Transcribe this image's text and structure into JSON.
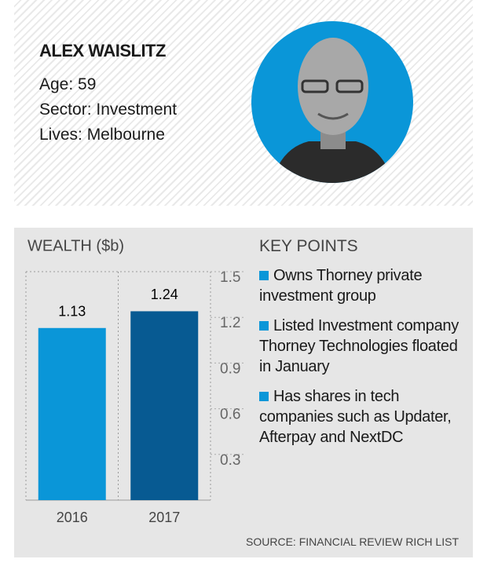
{
  "person": {
    "name": "ALEX WAISLITZ",
    "age": "Age: 59",
    "sector": "Sector: Investment",
    "lives": "Lives: Melbourne"
  },
  "chart_data": {
    "type": "bar",
    "title": "WEALTH ($b)",
    "categories": [
      "2016",
      "2017"
    ],
    "values": [
      1.13,
      1.24
    ],
    "colors": [
      "#0a96d8",
      "#075a92"
    ],
    "ylim": [
      0,
      1.5
    ],
    "yticks": [
      0.3,
      0.6,
      0.9,
      1.2,
      1.5
    ],
    "grid": true
  },
  "key_points": {
    "title": "KEY POINTS",
    "items": [
      "Owns Thorney private investment group",
      "Listed Investment company Thorney Technologies floated in January",
      "Has shares in tech companies such as Updater, Afterpay and NextDC"
    ]
  },
  "source": "SOURCE: FINANCIAL REVIEW RICH LIST"
}
